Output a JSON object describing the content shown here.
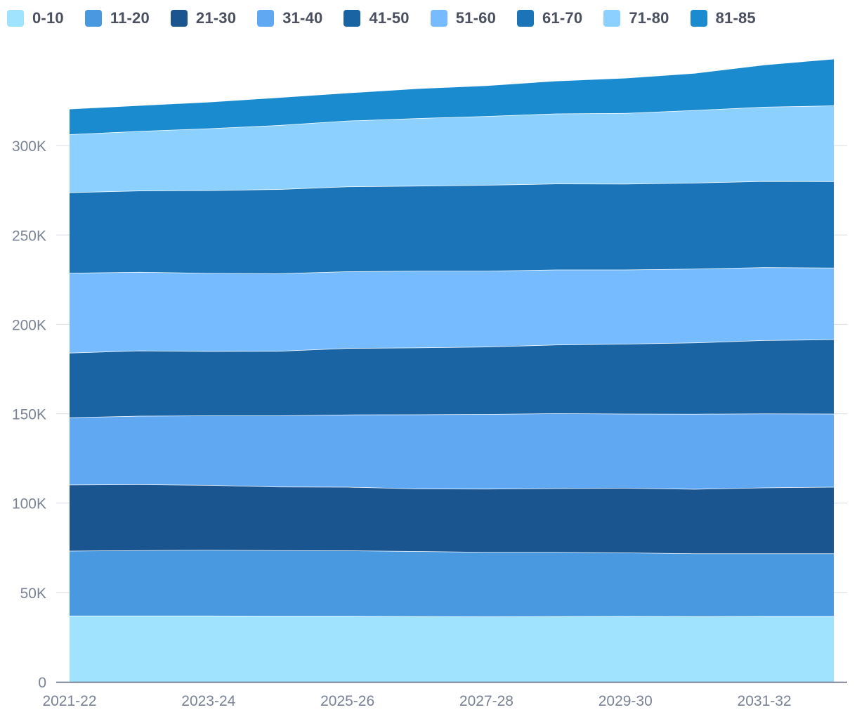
{
  "chart_data": {
    "type": "area",
    "stacked": true,
    "x": [
      "2021-22",
      "2022-23",
      "2023-24",
      "2024-25",
      "2025-26",
      "2026-27",
      "2027-28",
      "2028-29",
      "2029-30",
      "2030-31",
      "2031-32",
      "2032-33"
    ],
    "x_tick_labels": [
      "2021-22",
      "2023-24",
      "2025-26",
      "2027-28",
      "2029-30",
      "2031-32"
    ],
    "y_tick_labels": [
      "0",
      "50K",
      "100K",
      "150K",
      "200K",
      "250K",
      "300K"
    ],
    "y_ticks": [
      0,
      50000,
      100000,
      150000,
      200000,
      250000,
      300000
    ],
    "ylim": [
      0,
      350000
    ],
    "grid": true,
    "legend_position": "top-left",
    "series": [
      {
        "name": "0-10",
        "color": "#a0e3ff",
        "values": [
          37000,
          37000,
          37000,
          36900,
          36900,
          36700,
          36600,
          36700,
          36800,
          36700,
          36800,
          36800
        ]
      },
      {
        "name": "11-20",
        "color": "#4899e0",
        "values": [
          36300,
          36600,
          36800,
          36700,
          36600,
          36400,
          36000,
          35900,
          35500,
          35100,
          35000,
          35000
        ]
      },
      {
        "name": "21-30",
        "color": "#1b5590",
        "values": [
          37000,
          36900,
          36300,
          35600,
          35600,
          35000,
          35400,
          35700,
          36200,
          36100,
          36900,
          37300
        ]
      },
      {
        "name": "31-40",
        "color": "#61a8f2",
        "values": [
          37600,
          38300,
          38900,
          39800,
          40400,
          41500,
          41800,
          41900,
          41500,
          42000,
          41400,
          40900
        ]
      },
      {
        "name": "41-50",
        "color": "#1b64a4",
        "values": [
          36200,
          36500,
          36000,
          36100,
          37200,
          37400,
          37700,
          38400,
          39100,
          39900,
          41000,
          41600
        ]
      },
      {
        "name": "51-60",
        "color": "#76bbff",
        "values": [
          44700,
          44000,
          43700,
          43400,
          42900,
          42900,
          42400,
          42000,
          41500,
          41300,
          40800,
          40100
        ]
      },
      {
        "name": "61-70",
        "color": "#1c74b8",
        "values": [
          45000,
          45500,
          46300,
          47100,
          47500,
          47600,
          48100,
          48100,
          48000,
          48100,
          48200,
          48300
        ]
      },
      {
        "name": "71-80",
        "color": "#8bd0ff",
        "values": [
          32500,
          33300,
          34600,
          35800,
          36800,
          37800,
          38500,
          39200,
          39600,
          40600,
          41600,
          42400
        ]
      },
      {
        "name": "81-85",
        "color": "#1b8bd0",
        "values": [
          14000,
          14200,
          14600,
          15300,
          15400,
          16400,
          16900,
          18100,
          19400,
          20500,
          23300,
          25900
        ]
      }
    ]
  }
}
